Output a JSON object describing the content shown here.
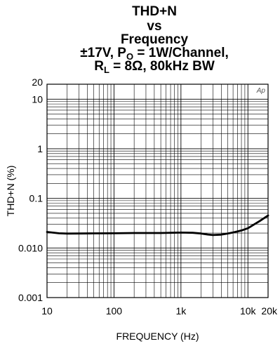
{
  "chart_data": {
    "type": "line",
    "title_lines": [
      "THD+N",
      "vs",
      "Frequency"
    ],
    "title_line4": {
      "prefix": "±17V, P",
      "sub": "O",
      "suffix": " = 1W/Channel,"
    },
    "title_line5": {
      "prefix": "R",
      "sub": "L",
      "suffix": " = 8Ω, 80kHz BW"
    },
    "xlabel": "FREQUENCY (Hz)",
    "ylabel": "THD+N (%)",
    "x_scale": "log",
    "y_scale": "log",
    "xlim": [
      10,
      20000
    ],
    "ylim": [
      0.001,
      20
    ],
    "grid": true,
    "x_ticks": [
      {
        "value": 10,
        "label": "10"
      },
      {
        "value": 100,
        "label": "100"
      },
      {
        "value": 1000,
        "label": "1k"
      },
      {
        "value": 10000,
        "label": "10k"
      },
      {
        "value": 20000,
        "label": "20k"
      }
    ],
    "y_ticks": [
      {
        "value": 0.001,
        "label": "0.001"
      },
      {
        "value": 0.01,
        "label": "0.010"
      },
      {
        "value": 0.1,
        "label": "0.1"
      },
      {
        "value": 1,
        "label": "1"
      },
      {
        "value": 10,
        "label": "10"
      },
      {
        "value": 20,
        "label": "20"
      }
    ],
    "annotation": "Ap",
    "series": [
      {
        "x": [
          10,
          15,
          20,
          30,
          50,
          100,
          200,
          500,
          1000,
          1500,
          2000,
          2500,
          3000,
          4000,
          5000,
          6000,
          7000,
          8000,
          10000,
          12000,
          15000,
          20000
        ],
        "y": [
          0.021,
          0.0198,
          0.0195,
          0.0196,
          0.0197,
          0.0198,
          0.02,
          0.02,
          0.0204,
          0.0202,
          0.0196,
          0.0187,
          0.0182,
          0.0186,
          0.0195,
          0.0205,
          0.0215,
          0.0225,
          0.025,
          0.029,
          0.035,
          0.045
        ]
      }
    ]
  },
  "colors": {
    "grid": "#000000",
    "line": "#000000",
    "annotation": "#555555"
  }
}
